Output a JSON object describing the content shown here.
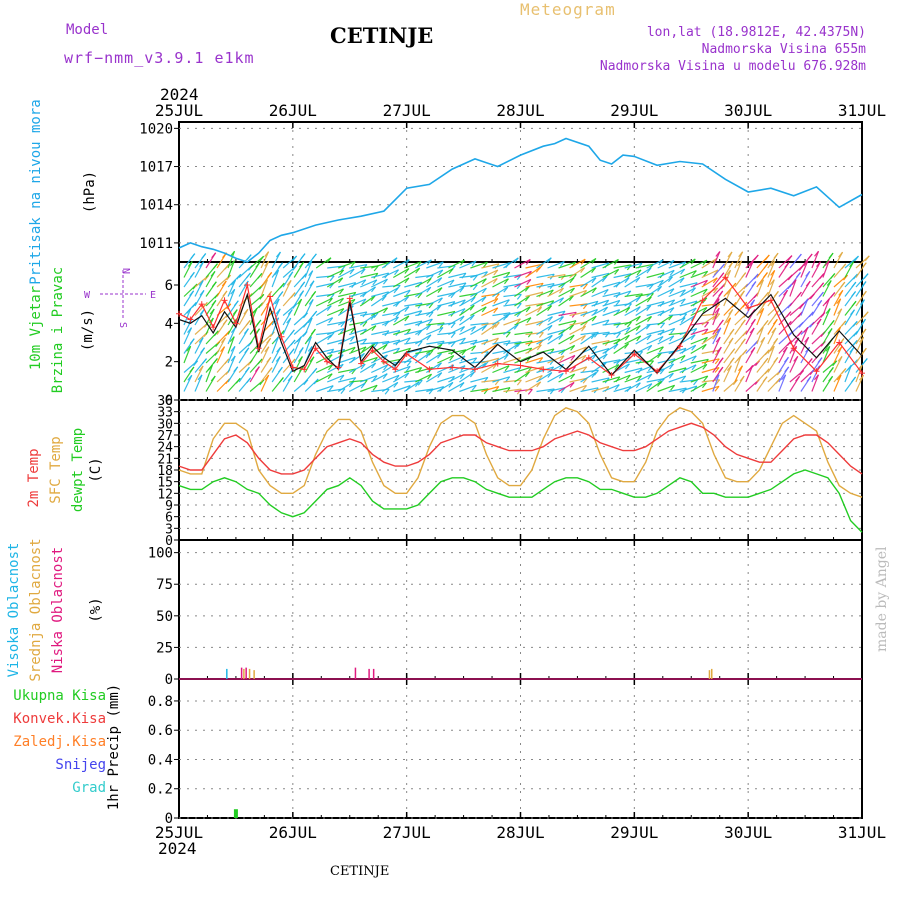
{
  "header": {
    "model_label": "Model",
    "model_name": "wrf−nmm_v3.9.1  e1km",
    "station": "CETINJE",
    "product": "Meteogram",
    "coords": "lon,lat (18.9812E, 42.4375N)",
    "elevation": "Nadmorska Visina 655m",
    "model_elevation": "Nadmorska Visina u modelu 676.928m",
    "year_top": "2024",
    "year_bottom": "2024",
    "footer_station": "CETINJE",
    "credit": "made by Angel"
  },
  "dates": [
    "25JUL",
    "26JUL",
    "27JUL",
    "28JUL",
    "29JUL",
    "30JUL",
    "31JUL"
  ],
  "colors": {
    "pressure": "#1ea7e8",
    "wind_speed": "#111111",
    "wind_gust": "#ff3030",
    "t2m": "#ee3b3b",
    "tsfc": "#e0a940",
    "dewpoint": "#22cc22",
    "cloud_high": "#1eb5e6",
    "cloud_mid": "#e0a940",
    "cloud_low": "#e0197f",
    "precip_total": "#22cc22",
    "precip_conv": "#ee3b3b",
    "precip_frz": "#ff7f27",
    "snow": "#4444ee",
    "hail": "#33cccc",
    "purple": "#9933cc"
  },
  "chart_data": [
    {
      "type": "line",
      "panel": "pressure",
      "ylabel": "Pritisak na nivou mora",
      "unit": "(hPa)",
      "yticks": [
        "1020",
        "1017",
        "1014",
        "1011"
      ],
      "ylim": [
        1009.5,
        1020.5
      ],
      "x_days": [
        0,
        0.1,
        0.2,
        0.3,
        0.4,
        0.5,
        0.6,
        0.7,
        0.8,
        0.9,
        1.0,
        1.2,
        1.4,
        1.6,
        1.8,
        2.0,
        2.2,
        2.4,
        2.6,
        2.7,
        2.8,
        3.0,
        3.2,
        3.3,
        3.4,
        3.6,
        3.7,
        3.8,
        3.9,
        4.0,
        4.2,
        4.4,
        4.6,
        4.8,
        5.0,
        5.2,
        5.4,
        5.6,
        5.8,
        6.0
      ],
      "y": [
        1010.6,
        1011.0,
        1010.7,
        1010.5,
        1010.2,
        1009.8,
        1009.5,
        1010.2,
        1011.2,
        1011.6,
        1011.8,
        1012.4,
        1012.8,
        1013.1,
        1013.5,
        1015.3,
        1015.6,
        1016.8,
        1017.6,
        1017.3,
        1017.0,
        1017.9,
        1018.6,
        1018.8,
        1019.2,
        1018.6,
        1017.5,
        1017.2,
        1017.9,
        1017.8,
        1017.1,
        1017.4,
        1017.2,
        1016.0,
        1015.0,
        1015.3,
        1014.7,
        1015.4,
        1013.8,
        1014.8
      ],
      "series": [
        {
          "name": "Pritisak na nivou mora"
        }
      ]
    },
    {
      "type": "line",
      "panel": "wind",
      "ylabel": [
        "10m Vjetar",
        "Brzina i Pravac"
      ],
      "unit": "(m/s)",
      "compass": [
        "N",
        "S",
        "W",
        "E"
      ],
      "yticks": [
        "0",
        "2",
        "4",
        "6"
      ],
      "ylim": [
        0,
        7.2
      ],
      "x_days": [
        0,
        0.1,
        0.2,
        0.3,
        0.4,
        0.5,
        0.6,
        0.7,
        0.8,
        0.9,
        1.0,
        1.1,
        1.2,
        1.3,
        1.4,
        1.5,
        1.6,
        1.7,
        1.8,
        1.9,
        2.0,
        2.2,
        2.4,
        2.6,
        2.8,
        3.0,
        3.2,
        3.4,
        3.6,
        3.8,
        4.0,
        4.2,
        4.4,
        4.6,
        4.8,
        5.0,
        5.2,
        5.4,
        5.6,
        5.8,
        6.0
      ],
      "series": [
        {
          "name": "10m Vjetar",
          "y": [
            4.2,
            4.0,
            4.4,
            3.5,
            4.6,
            3.8,
            5.5,
            2.5,
            4.8,
            3.0,
            1.5,
            1.8,
            3.0,
            2.2,
            1.6,
            5.1,
            2.0,
            2.8,
            2.2,
            1.8,
            2.5,
            2.8,
            2.6,
            1.7,
            2.9,
            2.0,
            2.5,
            1.6,
            2.8,
            1.3,
            2.6,
            1.4,
            2.9,
            4.5,
            5.3,
            4.3,
            5.5,
            3.4,
            2.2,
            3.6,
            2.3
          ]
        },
        {
          "name": "Udar vjetra",
          "y": [
            4.5,
            4.2,
            5.0,
            3.8,
            5.2,
            4.0,
            6.0,
            2.7,
            5.4,
            3.3,
            1.7,
            1.6,
            2.7,
            2.0,
            1.7,
            5.3,
            1.9,
            2.6,
            2.0,
            1.6,
            2.4,
            1.6,
            1.7,
            1.6,
            1.9,
            1.8,
            1.6,
            1.5,
            2.2,
            1.3,
            2.4,
            1.5,
            2.8,
            5.2,
            6.4,
            4.8,
            5.2,
            2.7,
            1.5,
            3.0,
            1.4
          ]
        }
      ]
    },
    {
      "type": "line",
      "panel": "temperature",
      "ylabel": [
        "2m Temp",
        "SFC Temp",
        "dewpt Temp"
      ],
      "unit": "(C)",
      "yticks": [
        "0",
        "3",
        "6",
        "9",
        "12",
        "15",
        "18",
        "21",
        "24",
        "27",
        "30",
        "33",
        "36"
      ],
      "ylim": [
        0,
        36
      ],
      "x_days": [
        0,
        0.1,
        0.2,
        0.3,
        0.4,
        0.5,
        0.6,
        0.7,
        0.8,
        0.9,
        1.0,
        1.1,
        1.2,
        1.3,
        1.4,
        1.5,
        1.6,
        1.7,
        1.8,
        1.9,
        2.0,
        2.1,
        2.2,
        2.3,
        2.4,
        2.5,
        2.6,
        2.7,
        2.8,
        2.9,
        3.0,
        3.1,
        3.2,
        3.3,
        3.4,
        3.5,
        3.6,
        3.7,
        3.8,
        3.9,
        4.0,
        4.1,
        4.2,
        4.3,
        4.4,
        4.5,
        4.6,
        4.7,
        4.8,
        4.9,
        5.0,
        5.1,
        5.2,
        5.3,
        5.4,
        5.5,
        5.6,
        5.7,
        5.8,
        5.9,
        6.0
      ],
      "series": [
        {
          "name": "2m Temp",
          "y": [
            19,
            18,
            18,
            22,
            26,
            27,
            25,
            21,
            18,
            17,
            17,
            18,
            21,
            24,
            25,
            26,
            25,
            22,
            20,
            19,
            19,
            20,
            22,
            25,
            26,
            27,
            27,
            25,
            24,
            23,
            23,
            23,
            24,
            26,
            27,
            28,
            27,
            25,
            24,
            23,
            23,
            24,
            26,
            28,
            29,
            30,
            29,
            27,
            24,
            22,
            21,
            20,
            20,
            23,
            26,
            27,
            27,
            25,
            22,
            19,
            17
          ]
        },
        {
          "name": "SFC Temp",
          "y": [
            18,
            17,
            17,
            26,
            30,
            30,
            28,
            18,
            14,
            12,
            12,
            14,
            22,
            28,
            31,
            31,
            28,
            20,
            14,
            12,
            12,
            16,
            24,
            30,
            32,
            32,
            30,
            22,
            16,
            14,
            14,
            18,
            26,
            32,
            34,
            33,
            30,
            22,
            16,
            15,
            15,
            20,
            28,
            32,
            34,
            33,
            30,
            22,
            16,
            15,
            15,
            18,
            24,
            30,
            32,
            30,
            28,
            20,
            14,
            12,
            11
          ]
        },
        {
          "name": "dewpt Temp",
          "y": [
            14,
            13,
            13,
            15,
            16,
            15,
            13,
            12,
            9,
            7,
            6,
            7,
            10,
            13,
            14,
            16,
            14,
            10,
            8,
            8,
            8,
            9,
            12,
            15,
            16,
            16,
            15,
            13,
            12,
            11,
            11,
            11,
            13,
            15,
            16,
            16,
            15,
            13,
            13,
            12,
            11,
            11,
            12,
            14,
            16,
            15,
            12,
            12,
            11,
            11,
            11,
            12,
            13,
            15,
            17,
            18,
            17,
            16,
            12,
            5,
            2
          ]
        }
      ]
    },
    {
      "type": "bar",
      "panel": "clouds",
      "ylabel": [
        "Visoka Oblacnost",
        "Srednja Oblacnost",
        "Niska Oblacnost"
      ],
      "unit": "(%)",
      "yticks": [
        "0",
        "25",
        "50",
        "75",
        "100"
      ],
      "ylim": [
        0,
        110
      ],
      "series": [
        {
          "name": "Visoka Oblacnost",
          "x_days": [
            0.42
          ],
          "values": [
            8
          ]
        },
        {
          "name": "Srednja Oblacnost",
          "x_days": [
            0.57,
            0.62,
            0.66,
            4.66,
            4.68
          ],
          "values": [
            8,
            8,
            7,
            7,
            8
          ]
        },
        {
          "name": "Niska Oblacnost",
          "x_days": [
            0.55,
            0.59,
            1.55,
            1.67,
            1.71
          ],
          "values": [
            9,
            9,
            9,
            8,
            8
          ]
        }
      ]
    },
    {
      "type": "bar",
      "panel": "precip",
      "ylabel": "1hr Precip (mm)",
      "legend": [
        "Ukupna Kisa",
        "Konvek.Kisa",
        "Zaledj.Kisa",
        "Snijeg",
        "Grad"
      ],
      "yticks": [
        "0",
        "0.2",
        "0.4",
        "0.6",
        "0.8"
      ],
      "ylim": [
        0,
        0.95
      ],
      "series": [
        {
          "name": "Ukupna Kisa",
          "x_days": [
            0.5
          ],
          "values": [
            0.06
          ]
        }
      ]
    }
  ]
}
